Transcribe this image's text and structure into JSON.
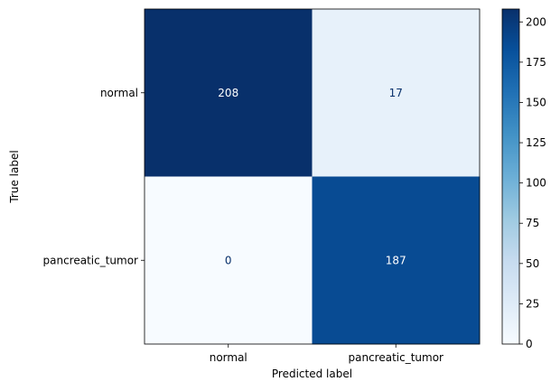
{
  "chart_data": {
    "type": "heatmap",
    "xlabel": "Predicted label",
    "ylabel": "True label",
    "x_categories": [
      "normal",
      "pancreatic_tumor"
    ],
    "y_categories": [
      "normal",
      "pancreatic_tumor"
    ],
    "values": [
      [
        208,
        17
      ],
      [
        0,
        187
      ]
    ],
    "colormap": "Blues",
    "color_range": [
      0,
      208
    ],
    "colorbar_ticks": [
      0,
      25,
      50,
      75,
      100,
      125,
      150,
      175,
      200
    ],
    "colors": {
      "low": "#f7fbff",
      "high": "#08306b",
      "text_on_dark": "#ffffff",
      "text_on_light": "#08306b"
    }
  }
}
